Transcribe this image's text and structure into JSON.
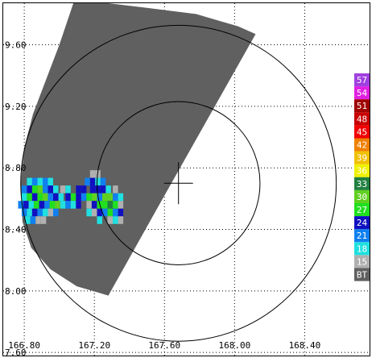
{
  "chart_data": {
    "type": "scatter",
    "title": "",
    "xlabel": "",
    "ylabel": "",
    "x_ticks": [
      "166.80",
      "167.20",
      "167.60",
      "168.00",
      "168.40"
    ],
    "x_tick_values": [
      166.8,
      167.2,
      167.6,
      168.0,
      168.4
    ],
    "y_ticks": [
      "9.60",
      "9.20",
      "8.80",
      "8.40",
      "8.00",
      "7.60"
    ],
    "y_tick_values": [
      9.6,
      9.2,
      8.8,
      8.4,
      8.0,
      7.6
    ],
    "xlim": [
      166.68,
      168.77
    ],
    "ylim": [
      7.58,
      9.87
    ],
    "grid": true,
    "grid_style": "dotted",
    "radar_center": [
      167.68,
      8.7
    ],
    "range_rings_deg": [
      0.465,
      0.9
    ],
    "legend_location": "right",
    "legend": [
      {
        "label": "57",
        "color": "#a040e0"
      },
      {
        "label": "54",
        "color": "#e020e0"
      },
      {
        "label": "51",
        "color": "#a00000"
      },
      {
        "label": "48",
        "color": "#c80000"
      },
      {
        "label": "45",
        "color": "#f00000"
      },
      {
        "label": "42",
        "color": "#f08000"
      },
      {
        "label": "39",
        "color": "#f0c000"
      },
      {
        "label": "36",
        "color": "#f0f000"
      },
      {
        "label": "33",
        "color": "#208040"
      },
      {
        "label": "30",
        "color": "#60d020"
      },
      {
        "label": "27",
        "color": "#20e020"
      },
      {
        "label": "24",
        "color": "#1010c0"
      },
      {
        "label": "21",
        "color": "#1080f0"
      },
      {
        "label": "18",
        "color": "#20e0e0"
      },
      {
        "label": "15",
        "color": "#b0b0b0"
      },
      {
        "label": "BT",
        "color": "#606060"
      }
    ],
    "coverage_polygon": [
      [
        167.08,
        9.87
      ],
      [
        167.28,
        9.87
      ],
      [
        167.5,
        9.84
      ],
      [
        167.78,
        9.8
      ],
      [
        168.02,
        9.72
      ],
      [
        168.12,
        9.67
      ],
      [
        167.58,
        8.58
      ],
      [
        167.28,
        7.97
      ],
      [
        167.1,
        8.03
      ],
      [
        166.95,
        8.14
      ],
      [
        166.84,
        8.28
      ],
      [
        166.79,
        8.45
      ],
      [
        166.78,
        8.7
      ],
      [
        166.8,
        8.93
      ],
      [
        166.85,
        9.15
      ],
      [
        166.93,
        9.39
      ],
      [
        167.0,
        9.6
      ]
    ],
    "echo_cells": [
      {
        "x": 166.83,
        "y": 8.71,
        "v": "18"
      },
      {
        "x": 166.86,
        "y": 8.71,
        "v": "21"
      },
      {
        "x": 166.89,
        "y": 8.71,
        "v": "18"
      },
      {
        "x": 166.92,
        "y": 8.71,
        "v": "21"
      },
      {
        "x": 166.95,
        "y": 8.71,
        "v": "18"
      },
      {
        "x": 166.8,
        "y": 8.66,
        "v": "21"
      },
      {
        "x": 166.83,
        "y": 8.66,
        "v": "24"
      },
      {
        "x": 166.86,
        "y": 8.66,
        "v": "27"
      },
      {
        "x": 166.89,
        "y": 8.66,
        "v": "30"
      },
      {
        "x": 166.92,
        "y": 8.66,
        "v": "21"
      },
      {
        "x": 166.95,
        "y": 8.66,
        "v": "24"
      },
      {
        "x": 166.98,
        "y": 8.66,
        "v": "18"
      },
      {
        "x": 166.8,
        "y": 8.61,
        "v": "18"
      },
      {
        "x": 166.83,
        "y": 8.61,
        "v": "27"
      },
      {
        "x": 166.86,
        "y": 8.61,
        "v": "24"
      },
      {
        "x": 166.89,
        "y": 8.61,
        "v": "27"
      },
      {
        "x": 166.92,
        "y": 8.61,
        "v": "30"
      },
      {
        "x": 166.95,
        "y": 8.61,
        "v": "21"
      },
      {
        "x": 166.98,
        "y": 8.61,
        "v": "24"
      },
      {
        "x": 167.01,
        "y": 8.61,
        "v": "18"
      },
      {
        "x": 166.78,
        "y": 8.56,
        "v": "21"
      },
      {
        "x": 166.81,
        "y": 8.56,
        "v": "24"
      },
      {
        "x": 166.84,
        "y": 8.56,
        "v": "18"
      },
      {
        "x": 166.87,
        "y": 8.56,
        "v": "27"
      },
      {
        "x": 166.9,
        "y": 8.56,
        "v": "24"
      },
      {
        "x": 166.93,
        "y": 8.56,
        "v": "21"
      },
      {
        "x": 166.96,
        "y": 8.56,
        "v": "27"
      },
      {
        "x": 166.99,
        "y": 8.56,
        "v": "30"
      },
      {
        "x": 167.02,
        "y": 8.56,
        "v": "18"
      },
      {
        "x": 166.8,
        "y": 8.51,
        "v": "21"
      },
      {
        "x": 166.83,
        "y": 8.51,
        "v": "18"
      },
      {
        "x": 166.86,
        "y": 8.51,
        "v": "24"
      },
      {
        "x": 166.89,
        "y": 8.51,
        "v": "21"
      },
      {
        "x": 166.92,
        "y": 8.51,
        "v": "18"
      },
      {
        "x": 166.95,
        "y": 8.51,
        "v": "15"
      },
      {
        "x": 166.98,
        "y": 8.51,
        "v": "21"
      },
      {
        "x": 166.82,
        "y": 8.46,
        "v": "18"
      },
      {
        "x": 166.85,
        "y": 8.46,
        "v": "21"
      },
      {
        "x": 166.88,
        "y": 8.46,
        "v": "15"
      },
      {
        "x": 166.91,
        "y": 8.46,
        "v": "15"
      },
      {
        "x": 167.02,
        "y": 8.66,
        "v": "15"
      },
      {
        "x": 167.05,
        "y": 8.66,
        "v": "18"
      },
      {
        "x": 167.05,
        "y": 8.61,
        "v": "24"
      },
      {
        "x": 167.08,
        "y": 8.61,
        "v": "27"
      },
      {
        "x": 167.05,
        "y": 8.56,
        "v": "21"
      },
      {
        "x": 167.08,
        "y": 8.56,
        "v": "18"
      },
      {
        "x": 167.11,
        "y": 8.56,
        "v": "24"
      },
      {
        "x": 167.11,
        "y": 8.66,
        "v": "24"
      },
      {
        "x": 167.14,
        "y": 8.66,
        "v": "24"
      },
      {
        "x": 167.11,
        "y": 8.61,
        "v": "24"
      },
      {
        "x": 167.14,
        "y": 8.61,
        "v": "21"
      },
      {
        "x": 167.17,
        "y": 8.61,
        "v": "27"
      },
      {
        "x": 167.19,
        "y": 8.76,
        "v": "15"
      },
      {
        "x": 167.22,
        "y": 8.76,
        "v": "15"
      },
      {
        "x": 167.19,
        "y": 8.71,
        "v": "24"
      },
      {
        "x": 167.22,
        "y": 8.71,
        "v": "18"
      },
      {
        "x": 167.25,
        "y": 8.71,
        "v": "21"
      },
      {
        "x": 167.16,
        "y": 8.71,
        "v": "21"
      },
      {
        "x": 167.19,
        "y": 8.66,
        "v": "24"
      },
      {
        "x": 167.22,
        "y": 8.66,
        "v": "24"
      },
      {
        "x": 167.25,
        "y": 8.66,
        "v": "24"
      },
      {
        "x": 167.28,
        "y": 8.66,
        "v": "18"
      },
      {
        "x": 167.2,
        "y": 8.61,
        "v": "30"
      },
      {
        "x": 167.23,
        "y": 8.61,
        "v": "21"
      },
      {
        "x": 167.26,
        "y": 8.61,
        "v": "30"
      },
      {
        "x": 167.29,
        "y": 8.61,
        "v": "30"
      },
      {
        "x": 167.32,
        "y": 8.61,
        "v": "21"
      },
      {
        "x": 167.17,
        "y": 8.56,
        "v": "15"
      },
      {
        "x": 167.2,
        "y": 8.56,
        "v": "24"
      },
      {
        "x": 167.23,
        "y": 8.56,
        "v": "27"
      },
      {
        "x": 167.26,
        "y": 8.56,
        "v": "27"
      },
      {
        "x": 167.29,
        "y": 8.56,
        "v": "33"
      },
      {
        "x": 167.32,
        "y": 8.56,
        "v": "27"
      },
      {
        "x": 167.35,
        "y": 8.56,
        "v": "15"
      },
      {
        "x": 167.17,
        "y": 8.51,
        "v": "18"
      },
      {
        "x": 167.2,
        "y": 8.51,
        "v": "15"
      },
      {
        "x": 167.23,
        "y": 8.51,
        "v": "24"
      },
      {
        "x": 167.26,
        "y": 8.51,
        "v": "21"
      },
      {
        "x": 167.29,
        "y": 8.51,
        "v": "27"
      },
      {
        "x": 167.32,
        "y": 8.51,
        "v": "21"
      },
      {
        "x": 167.35,
        "y": 8.51,
        "v": "24"
      },
      {
        "x": 167.23,
        "y": 8.46,
        "v": "18"
      },
      {
        "x": 167.29,
        "y": 8.46,
        "v": "15"
      },
      {
        "x": 167.32,
        "y": 8.46,
        "v": "18"
      },
      {
        "x": 167.35,
        "y": 8.46,
        "v": "15"
      },
      {
        "x": 167.32,
        "y": 8.66,
        "v": "15"
      },
      {
        "x": 167.35,
        "y": 8.61,
        "v": "18"
      }
    ]
  }
}
